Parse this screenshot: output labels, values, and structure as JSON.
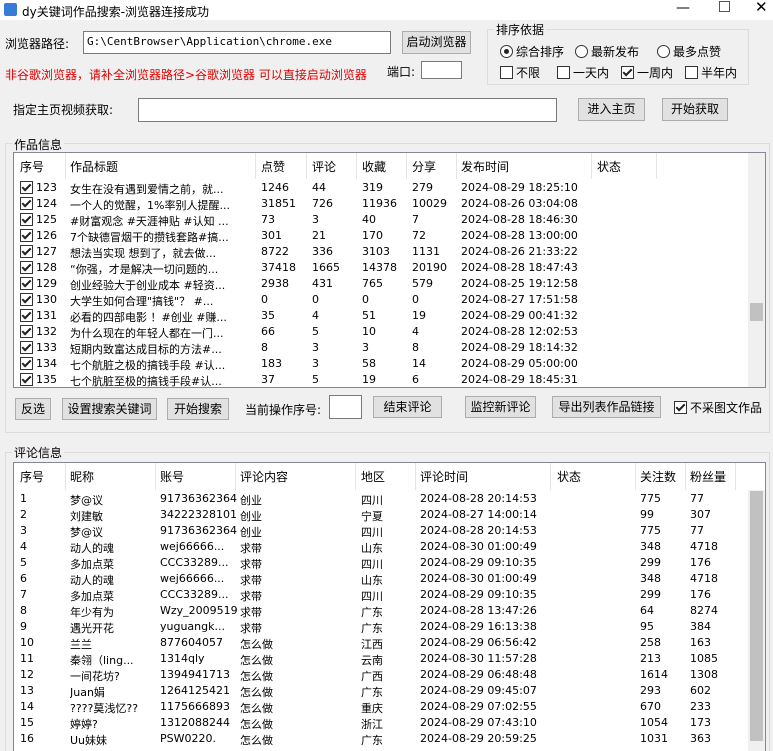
{
  "window": {
    "title": "dy关键词作品搜索-浏览器连接成功"
  },
  "browser": {
    "path_label": "浏览器路径:",
    "path_value": "G:\\CentBrowser\\Application\\chrome.exe",
    "launch_button": "启动浏览器",
    "warning": "非谷歌浏览器，请补全浏览器路径>谷歌浏览器 可以直接启动浏览器",
    "port_label": "端口:"
  },
  "sort": {
    "title": "排序依据",
    "radios": [
      {
        "label": "综合排序",
        "checked": true
      },
      {
        "label": "最新发布",
        "checked": false
      },
      {
        "label": "最多点赞",
        "checked": false
      }
    ],
    "time_filters": [
      {
        "label": "不限",
        "checked": false
      },
      {
        "label": "一天内",
        "checked": false
      },
      {
        "label": "一周内",
        "checked": true
      },
      {
        "label": "半年内",
        "checked": false
      }
    ]
  },
  "homepage": {
    "label": "指定主页视频获取:",
    "enter_button": "进入主页",
    "fetch_button": "开始获取"
  },
  "works": {
    "title": "作品信息",
    "columns": [
      "序号",
      "作品标题",
      "点赞",
      "评论",
      "收藏",
      "分享",
      "发布时间",
      "状态"
    ],
    "rows": [
      {
        "checked": true,
        "cells": [
          "123",
          "女生在没有遇到爱情之前，就...",
          "1246",
          "44",
          "319",
          "279",
          "2024-08-29 18:25:10"
        ]
      },
      {
        "checked": true,
        "cells": [
          "124",
          "一个人的觉醒，1%率别人提醒...",
          "31851",
          "726",
          "11936",
          "10029",
          "2024-08-26 03:04:08"
        ]
      },
      {
        "checked": true,
        "cells": [
          "125",
          "#财富观念 #天涯神贴 #认知 ...",
          "73",
          "3",
          "40",
          "7",
          "2024-08-28 18:46:30"
        ]
      },
      {
        "checked": true,
        "cells": [
          "126",
          "7个缺德冒烟干的攒钱套路#搞...",
          "301",
          "21",
          "170",
          "72",
          "2024-08-28 13:00:00"
        ]
      },
      {
        "checked": true,
        "cells": [
          "127",
          "想法当实现 想到了，就去做...",
          "8722",
          "336",
          "3103",
          "1131",
          "2024-08-26 21:33:22"
        ]
      },
      {
        "checked": true,
        "cells": [
          "128",
          "“你强，才是解决一切问题的...",
          "37418",
          "1665",
          "14378",
          "20190",
          "2024-08-28 18:47:43"
        ]
      },
      {
        "checked": true,
        "cells": [
          "129",
          "创业经验大于创业成本 #轻资...",
          "2938",
          "431",
          "765",
          "579",
          "2024-08-25 19:12:58"
        ]
      },
      {
        "checked": true,
        "cells": [
          "130",
          "大学生如何合理\"搞钱\"？ #...",
          "0",
          "0",
          "0",
          "0",
          "2024-08-27 17:51:58"
        ]
      },
      {
        "checked": true,
        "cells": [
          "131",
          "必看的四部电影 ！#创业 #赚...",
          "35",
          "4",
          "51",
          "19",
          "2024-08-29 00:41:32"
        ]
      },
      {
        "checked": true,
        "cells": [
          "132",
          "为什么现在的年轻人都在一门...",
          "66",
          "5",
          "10",
          "4",
          "2024-08-28 12:02:53"
        ]
      },
      {
        "checked": true,
        "cells": [
          "133",
          "短期内致富达成目标的方法#...",
          "8",
          "3",
          "3",
          "8",
          "2024-08-29 18:14:32"
        ]
      },
      {
        "checked": true,
        "cells": [
          "134",
          "七个航脏之极的搞钱手段 #认...",
          "183",
          "3",
          "58",
          "14",
          "2024-08-29 05:00:00"
        ]
      },
      {
        "checked": true,
        "cells": [
          "135",
          "七个肮脏至极的搞钱手段#认...",
          "37",
          "5",
          "19",
          "6",
          "2024-08-29 18:45:31"
        ]
      }
    ]
  },
  "actions": {
    "invert": "反选",
    "set_keywords": "设置搜索关键词",
    "start_search": "开始搜索",
    "current_label": "当前操作序号:",
    "end_comments": "结束评论",
    "monitor": "监控新评论",
    "export": "导出列表作品链接",
    "skip_images": {
      "label": "不采图文作品",
      "checked": true
    }
  },
  "comments": {
    "title": "评论信息",
    "columns": [
      "序号",
      "昵称",
      "账号",
      "评论内容",
      "地区",
      "评论时间",
      "状态",
      "关注数",
      "粉丝量"
    ],
    "rows": [
      [
        "1",
        "梦@议",
        "91736362364",
        "创业",
        "四川",
        "2024-08-28 20:14:53",
        "",
        "775",
        "77"
      ],
      [
        "2",
        "刘建敏",
        "34222328101",
        "创业",
        "宁夏",
        "2024-08-27 14:00:14",
        "",
        "99",
        "307"
      ],
      [
        "3",
        "梦@议",
        "91736362364",
        "创业",
        "四川",
        "2024-08-28 20:14:53",
        "",
        "775",
        "77"
      ],
      [
        "4",
        "动人的魂",
        "wej66666...",
        "求带",
        "山东",
        "2024-08-30 01:00:49",
        "",
        "348",
        "4718"
      ],
      [
        "5",
        "多加点菜",
        "CCC33289...",
        "求带",
        "四川",
        "2024-08-29 09:10:35",
        "",
        "299",
        "176"
      ],
      [
        "6",
        "动人的魂",
        "wej66666...",
        "求带",
        "山东",
        "2024-08-30 01:00:49",
        "",
        "348",
        "4718"
      ],
      [
        "7",
        "多加点菜",
        "CCC33289...",
        "求带",
        "四川",
        "2024-08-29 09:10:35",
        "",
        "299",
        "176"
      ],
      [
        "8",
        "年少有为",
        "Wzy_2009519",
        "求带",
        "广东",
        "2024-08-28 13:47:26",
        "",
        "64",
        "8274"
      ],
      [
        "9",
        "遇光开花",
        "yuguangk...",
        "求带",
        "广东",
        "2024-08-29 16:13:38",
        "",
        "95",
        "384"
      ],
      [
        "10",
        "兰兰",
        "877604057",
        "怎么做",
        "江西",
        "2024-08-29 06:56:42",
        "",
        "258",
        "163"
      ],
      [
        "11",
        "秦翎（ling...",
        "1314qly",
        "怎么做",
        "云南",
        "2024-08-30 11:57:28",
        "",
        "213",
        "1085"
      ],
      [
        "12",
        "一间花坊?",
        "1394941713",
        "怎么做",
        "广西",
        "2024-08-29 06:48:48",
        "",
        "1614",
        "1308"
      ],
      [
        "13",
        "Juan娟",
        "1264125421",
        "怎么做",
        "广东",
        "2024-08-29 09:45:07",
        "",
        "293",
        "602"
      ],
      [
        "14",
        "????莫浅忆??",
        "1175666893",
        "怎么做",
        "重庆",
        "2024-08-29 07:02:55",
        "",
        "670",
        "233"
      ],
      [
        "15",
        "婷婷?",
        "1312088244",
        "怎么做",
        "浙江",
        "2024-08-29 07:43:10",
        "",
        "1054",
        "173"
      ],
      [
        "16",
        "Uu妹妹",
        "PSW0220.",
        "怎么做",
        "广东",
        "2024-08-29 20:59:25",
        "",
        "1031",
        "363"
      ]
    ]
  }
}
